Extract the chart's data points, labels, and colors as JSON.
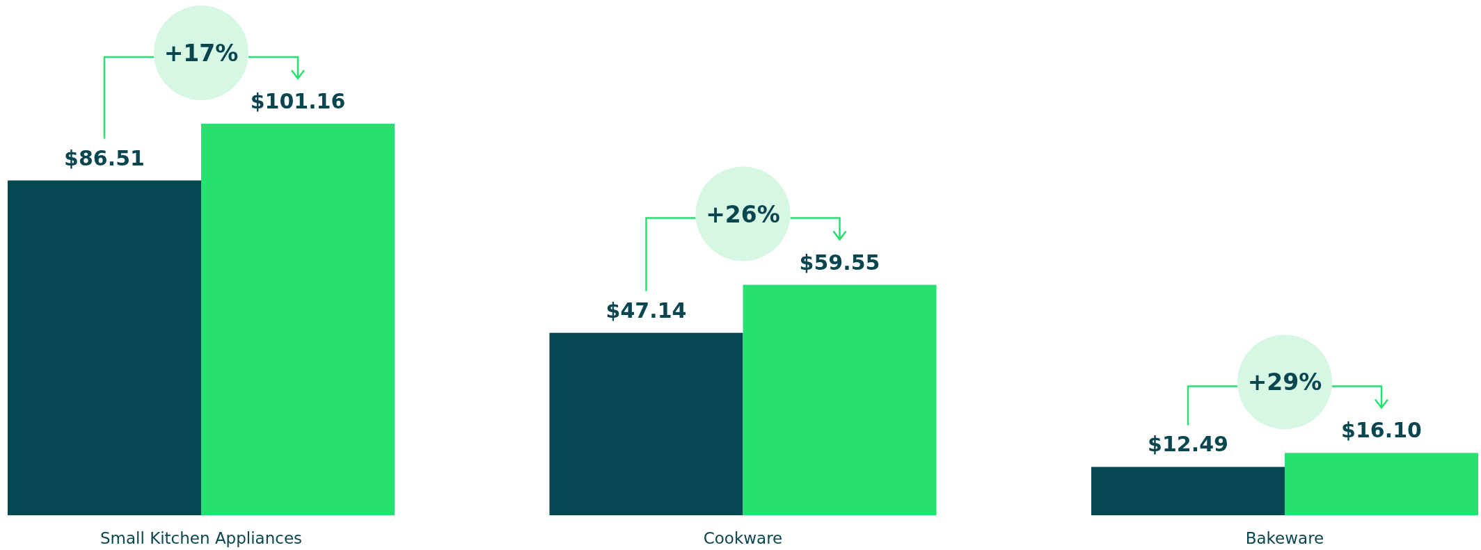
{
  "chart_data": {
    "type": "bar",
    "categories": [
      "Small Kitchen Appliances",
      "Cookware",
      "Bakeware"
    ],
    "series": [
      {
        "color": "#064852",
        "values": [
          86.51,
          47.14,
          12.49
        ],
        "value_labels": [
          "$86.51",
          "$47.14",
          "$12.49"
        ]
      },
      {
        "color": "#26e070",
        "values": [
          101.16,
          59.55,
          16.1
        ],
        "value_labels": [
          "$101.16",
          "$59.55",
          "$16.10"
        ]
      }
    ],
    "annotations": [
      "+17%",
      "+26%",
      "+29%"
    ]
  }
}
